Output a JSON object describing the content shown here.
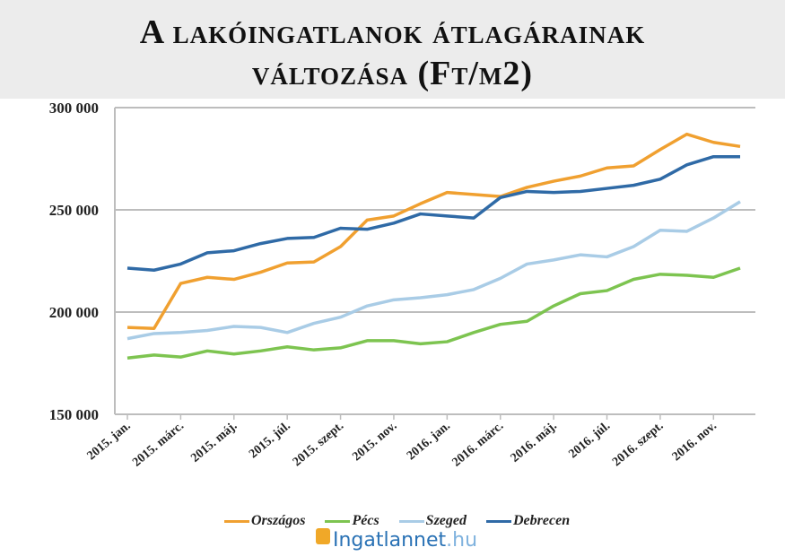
{
  "chart_data": {
    "type": "line",
    "title": "A lakóingatlanok átlagárainak változása (Ft/m2)",
    "title_lines": [
      "A lakóingatlanok átlagárainak",
      "változása (Ft/m2)"
    ],
    "xlabel": "",
    "ylabel": "",
    "ylim": [
      150000,
      300000
    ],
    "yticks": [
      150000,
      200000,
      250000,
      300000
    ],
    "ytick_labels": [
      "150 000",
      "200 000",
      "250 000",
      "300 000"
    ],
    "grid": true,
    "legend_position": "bottom",
    "x": [
      "2015. jan.",
      "2015. febr.",
      "2015. márc.",
      "2015. ápr.",
      "2015. máj.",
      "2015. jún.",
      "2015. júl.",
      "2015. aug.",
      "2015. szept.",
      "2015. okt.",
      "2015. nov.",
      "2015. dec.",
      "2016. jan.",
      "2016. febr.",
      "2016. márc.",
      "2016. ápr.",
      "2016. máj.",
      "2016. jún.",
      "2016. júl.",
      "2016. aug.",
      "2016. szept.",
      "2016. okt.",
      "2016. nov.",
      "2016. dec."
    ],
    "xtick_labels": [
      "2015. jan.",
      "2015. márc.",
      "2015. máj.",
      "2015. júl.",
      "2015. szept.",
      "2015. nov.",
      "2016. jan.",
      "2016. márc.",
      "2016. máj.",
      "2016. júl.",
      "2016. szept.",
      "2016. nov."
    ],
    "series": [
      {
        "name": "Országos",
        "color": "#f0a030",
        "values": [
          192500,
          192000,
          214000,
          217000,
          216000,
          219500,
          224000,
          224500,
          232000,
          245000,
          247000,
          253000,
          258500,
          257500,
          256500,
          261000,
          264000,
          266500,
          270500,
          271500,
          279500,
          287000,
          283000,
          281000
        ]
      },
      {
        "name": "Pécs",
        "color": "#7dc450",
        "values": [
          177500,
          179000,
          178000,
          181000,
          179500,
          181000,
          183000,
          181500,
          182500,
          186000,
          186000,
          184500,
          185500,
          190000,
          194000,
          195500,
          203000,
          209000,
          210500,
          216000,
          218500,
          218000,
          217000,
          221500
        ]
      },
      {
        "name": "Szeged",
        "color": "#a9cce6",
        "values": [
          187000,
          189500,
          190000,
          191000,
          193000,
          192500,
          190000,
          194500,
          197500,
          203000,
          206000,
          207000,
          208500,
          211000,
          216500,
          223500,
          225500,
          228000,
          227000,
          232000,
          240000,
          239500,
          246000,
          254000
        ]
      },
      {
        "name": "Debrecen",
        "color": "#2f6aa6",
        "values": [
          221500,
          220500,
          223500,
          229000,
          230000,
          233500,
          236000,
          236500,
          241000,
          240500,
          243500,
          248000,
          247000,
          246000,
          256000,
          259000,
          258500,
          259000,
          260500,
          262000,
          265000,
          272000,
          276000,
          276000
        ]
      }
    ]
  },
  "logo": {
    "main": "Ingatlannet",
    "suffix": ".hu"
  }
}
